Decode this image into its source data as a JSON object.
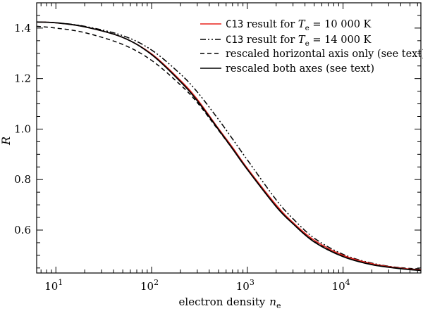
{
  "chart_data": {
    "type": "line",
    "xlabel": "electron density",
    "xlabel_sym": "n",
    "xlabel_sub": "e",
    "ylabel": "R",
    "xscale": "log",
    "xlim": [
      6.3,
      65000
    ],
    "ylim": [
      0.43,
      1.5
    ],
    "x_ticks": [
      {
        "value": 10,
        "base": "10",
        "exp": "1"
      },
      {
        "value": 100,
        "base": "10",
        "exp": "2"
      },
      {
        "value": 1000,
        "base": "10",
        "exp": "3"
      },
      {
        "value": 10000,
        "base": "10",
        "exp": "4"
      }
    ],
    "y_ticks": [
      {
        "value": 0.6,
        "label": "0.6"
      },
      {
        "value": 0.8,
        "label": "0.8"
      },
      {
        "value": 1.0,
        "label": "1.0"
      },
      {
        "value": 1.2,
        "label": "1.2"
      },
      {
        "value": 1.4,
        "label": "1.4"
      }
    ],
    "legend_position": "top-right",
    "series": [
      {
        "id": "c13-10000",
        "legend_code": "C13",
        "legend_pre": " result for ",
        "legend_sym": "T",
        "legend_sub": "e",
        "legend_post": " = 10 000 K",
        "color": "#e8221c",
        "dash": "solid",
        "points": [
          [
            6.3,
            1.424
          ],
          [
            10,
            1.421
          ],
          [
            20,
            1.405
          ],
          [
            50,
            1.363
          ],
          [
            100,
            1.298
          ],
          [
            200,
            1.193
          ],
          [
            300,
            1.118
          ],
          [
            500,
            1.002
          ],
          [
            700,
            0.928
          ],
          [
            1000,
            0.845
          ],
          [
            2000,
            0.7
          ],
          [
            3000,
            0.63
          ],
          [
            5000,
            0.56
          ],
          [
            10000,
            0.5
          ],
          [
            20000,
            0.467
          ],
          [
            40000,
            0.449
          ],
          [
            65000,
            0.442
          ]
        ]
      },
      {
        "id": "c13-14000",
        "legend_code": "C13",
        "legend_pre": " result for ",
        "legend_sym": "T",
        "legend_sub": "e",
        "legend_post": " = 14 000 K",
        "color": "#000000",
        "dash": "dashdotdot",
        "points": [
          [
            6.3,
            1.424
          ],
          [
            10,
            1.421
          ],
          [
            20,
            1.407
          ],
          [
            50,
            1.37
          ],
          [
            100,
            1.313
          ],
          [
            200,
            1.218
          ],
          [
            300,
            1.147
          ],
          [
            500,
            1.038
          ],
          [
            700,
            0.961
          ],
          [
            1000,
            0.878
          ],
          [
            2000,
            0.72
          ],
          [
            3000,
            0.645
          ],
          [
            5000,
            0.568
          ],
          [
            10000,
            0.504
          ],
          [
            20000,
            0.469
          ],
          [
            40000,
            0.45
          ],
          [
            65000,
            0.443
          ]
        ]
      },
      {
        "id": "rescaled-horizontal",
        "legend_text": "rescaled horizontal axis only (see text)",
        "color": "#000000",
        "dash": "dashed",
        "points": [
          [
            6.3,
            1.407
          ],
          [
            10,
            1.4
          ],
          [
            20,
            1.382
          ],
          [
            50,
            1.335
          ],
          [
            100,
            1.272
          ],
          [
            200,
            1.175
          ],
          [
            300,
            1.105
          ],
          [
            500,
            0.995
          ],
          [
            700,
            0.922
          ],
          [
            1000,
            0.843
          ],
          [
            2000,
            0.695
          ],
          [
            3000,
            0.628
          ],
          [
            5000,
            0.555
          ],
          [
            10000,
            0.497
          ],
          [
            20000,
            0.466
          ],
          [
            40000,
            0.451
          ],
          [
            65000,
            0.446
          ]
        ]
      },
      {
        "id": "rescaled-both",
        "legend_text": "rescaled both axes (see text)",
        "color": "#000000",
        "dash": "solid",
        "points": [
          [
            6.3,
            1.424
          ],
          [
            10,
            1.421
          ],
          [
            20,
            1.405
          ],
          [
            50,
            1.363
          ],
          [
            100,
            1.295
          ],
          [
            200,
            1.188
          ],
          [
            300,
            1.112
          ],
          [
            500,
            0.998
          ],
          [
            700,
            0.922
          ],
          [
            1000,
            0.84
          ],
          [
            2000,
            0.693
          ],
          [
            3000,
            0.625
          ],
          [
            5000,
            0.553
          ],
          [
            10000,
            0.495
          ],
          [
            20000,
            0.463
          ],
          [
            40000,
            0.447
          ],
          [
            65000,
            0.44
          ]
        ]
      }
    ]
  }
}
